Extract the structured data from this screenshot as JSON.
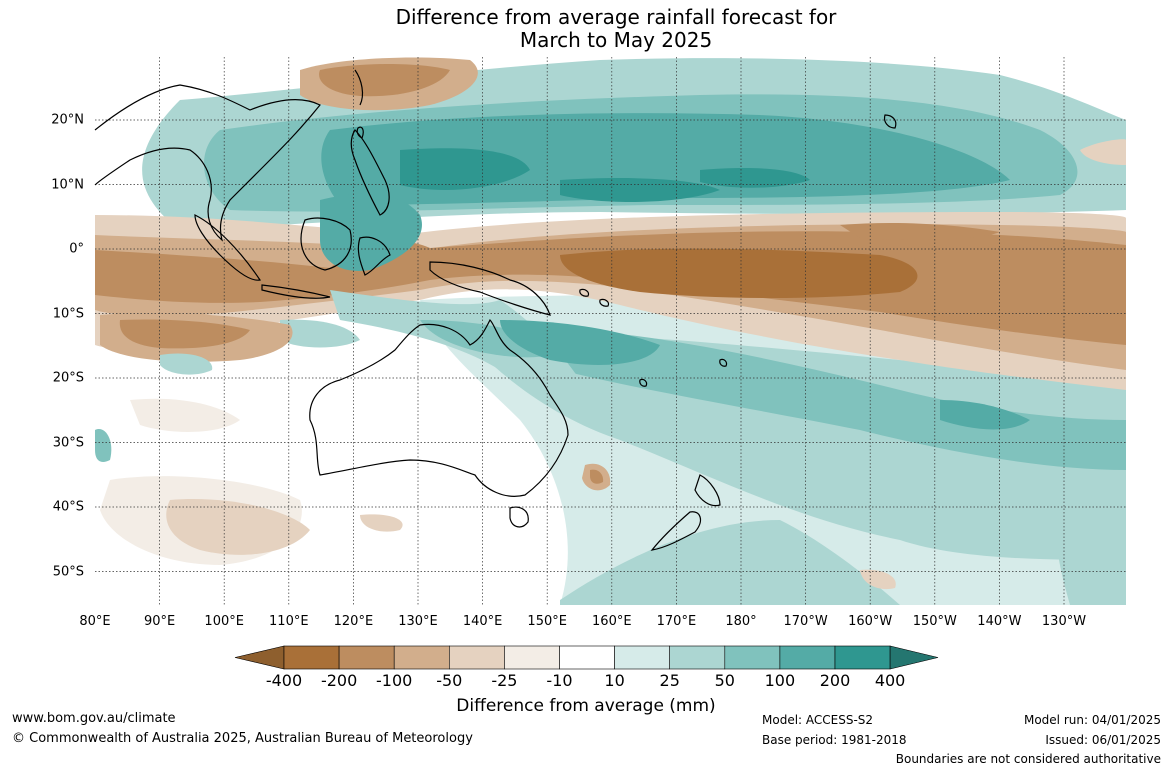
{
  "title_line1": "Difference from average rainfall forecast for",
  "title_line2": "March to May 2025",
  "lat_labels": [
    "20°N",
    "10°N",
    "0°",
    "10°S",
    "20°S",
    "30°S",
    "40°S",
    "50°S"
  ],
  "lon_labels": [
    "80°E",
    "90°E",
    "100°E",
    "110°E",
    "120°E",
    "130°E",
    "140°E",
    "150°E",
    "160°E",
    "170°E",
    "180°",
    "170°W",
    "160°W",
    "150°W",
    "140°W",
    "130°W"
  ],
  "colorbar": {
    "labels": [
      "-400",
      "-200",
      "-100",
      "-50",
      "-25",
      "-10",
      "10",
      "25",
      "50",
      "100",
      "200",
      "400"
    ],
    "colors": [
      "#8e5f2e",
      "#a97038",
      "#bd8d60",
      "#d2ae8c",
      "#e5d2c0",
      "#f3ede6",
      "#ffffff",
      "#d6ebe9",
      "#acd6d2",
      "#80c2bd",
      "#54aba6",
      "#2f9790",
      "#247670"
    ],
    "title": "Difference from average (mm)"
  },
  "footer": {
    "url": "www.bom.gov.au/climate",
    "copyright": "© Commonwealth of Australia 2025, Australian Bureau of Meteorology",
    "model": "Model: ACCESS-S2",
    "base_period": "Base period: 1981-2018",
    "model_run": "Model run: 04/01/2025",
    "issued": "Issued: 06/01/2025",
    "disclaimer": "Boundaries are not considered authoritative"
  }
}
